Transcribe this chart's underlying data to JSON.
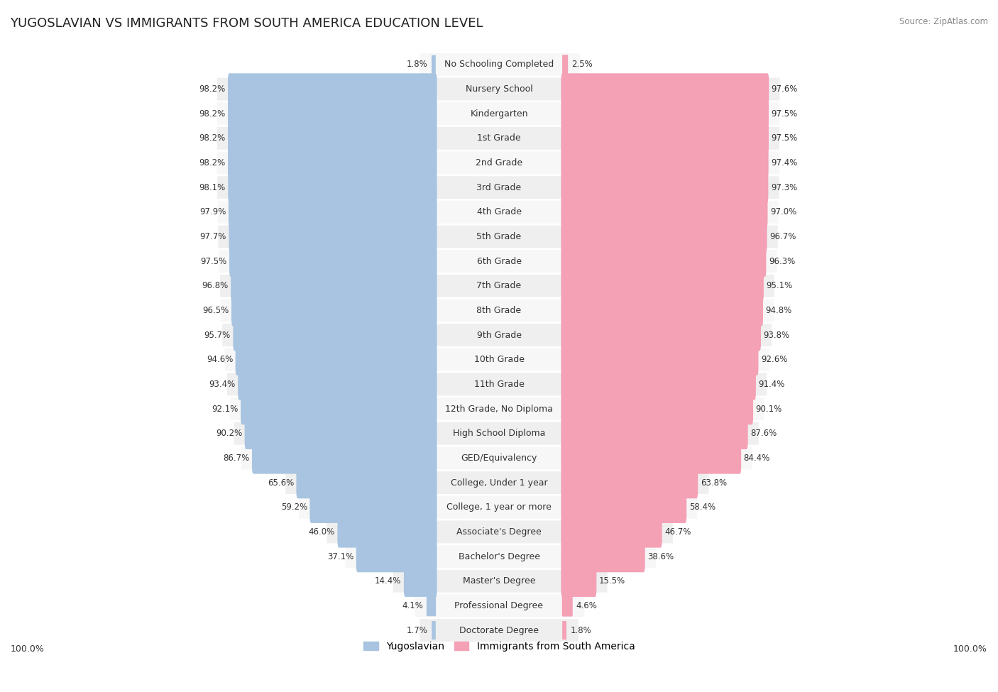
{
  "title": "YUGOSLAVIAN VS IMMIGRANTS FROM SOUTH AMERICA EDUCATION LEVEL",
  "source": "Source: ZipAtlas.com",
  "categories": [
    "No Schooling Completed",
    "Nursery School",
    "Kindergarten",
    "1st Grade",
    "2nd Grade",
    "3rd Grade",
    "4th Grade",
    "5th Grade",
    "6th Grade",
    "7th Grade",
    "8th Grade",
    "9th Grade",
    "10th Grade",
    "11th Grade",
    "12th Grade, No Diploma",
    "High School Diploma",
    "GED/Equivalency",
    "College, Under 1 year",
    "College, 1 year or more",
    "Associate's Degree",
    "Bachelor's Degree",
    "Master's Degree",
    "Professional Degree",
    "Doctorate Degree"
  ],
  "yugoslavian": [
    1.8,
    98.2,
    98.2,
    98.2,
    98.2,
    98.1,
    97.9,
    97.7,
    97.5,
    96.8,
    96.5,
    95.7,
    94.6,
    93.4,
    92.1,
    90.2,
    86.7,
    65.6,
    59.2,
    46.0,
    37.1,
    14.4,
    4.1,
    1.7
  ],
  "immigrants": [
    2.5,
    97.6,
    97.5,
    97.5,
    97.4,
    97.3,
    97.0,
    96.7,
    96.3,
    95.1,
    94.8,
    93.8,
    92.6,
    91.4,
    90.1,
    87.6,
    84.4,
    63.8,
    58.4,
    46.7,
    38.6,
    15.5,
    4.6,
    1.8
  ],
  "blue_color": "#a8c4e0",
  "pink_color": "#f4a0b5",
  "label_fontsize": 9.0,
  "value_fontsize": 8.5,
  "title_fontsize": 13,
  "legend_label_yug": "Yugoslavian",
  "legend_label_imm": "Immigrants from South America",
  "row_colors": [
    "#f7f7f7",
    "#efefef"
  ]
}
